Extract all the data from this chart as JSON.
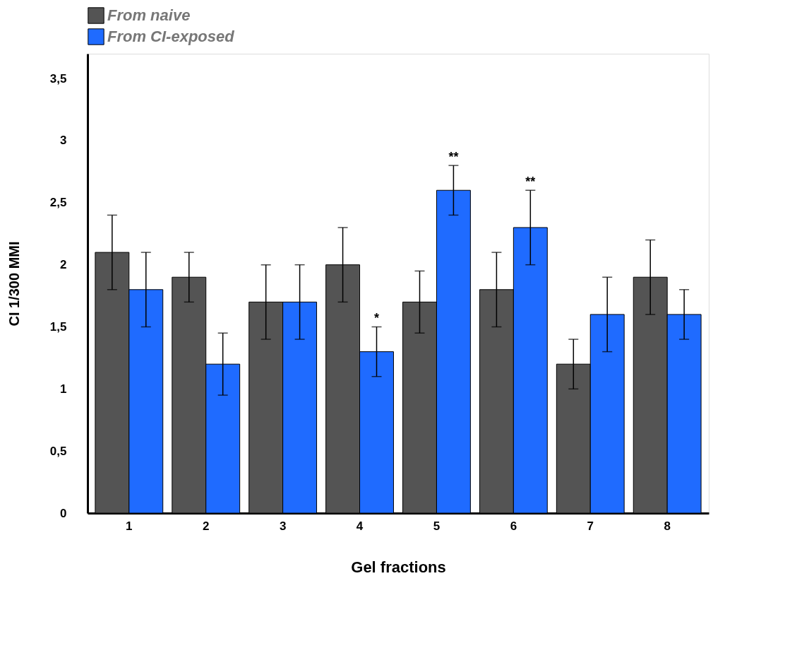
{
  "chart_data": {
    "type": "bar",
    "xlabel": "Gel fractions",
    "ylabel": "CI 1/300 MMI",
    "categories": [
      "1",
      "2",
      "3",
      "4",
      "5",
      "6",
      "7",
      "8"
    ],
    "series": [
      {
        "name": "From naive",
        "color": "#545454",
        "values": [
          2.1,
          1.9,
          1.7,
          2.0,
          1.7,
          1.8,
          1.2,
          1.9
        ],
        "errors": [
          0.3,
          0.2,
          0.3,
          0.3,
          [
            1.45,
            1.95
          ],
          0.3,
          0.2,
          0.3
        ]
      },
      {
        "name": "From CI-exposed",
        "color": "#1f6bff",
        "values": [
          1.8,
          1.2,
          1.7,
          1.3,
          2.6,
          2.3,
          1.6,
          1.6
        ],
        "errors": [
          0.3,
          0.25,
          0.3,
          0.2,
          0.2,
          0.3,
          0.3,
          0.2
        ],
        "value_labels": [
          null,
          null,
          null,
          "*",
          "**",
          "**",
          null,
          null
        ]
      }
    ],
    "ylim": [
      0,
      3.7
    ],
    "yticks": [
      0,
      {
        "value": 0.5,
        "label": "0,5"
      },
      1,
      {
        "value": 1.5,
        "label": "1,5"
      },
      2,
      {
        "value": 2.5,
        "label": "2,5"
      },
      3,
      {
        "value": 3.5,
        "label": "3,5"
      }
    ],
    "legend": "top",
    "grid": false
  }
}
